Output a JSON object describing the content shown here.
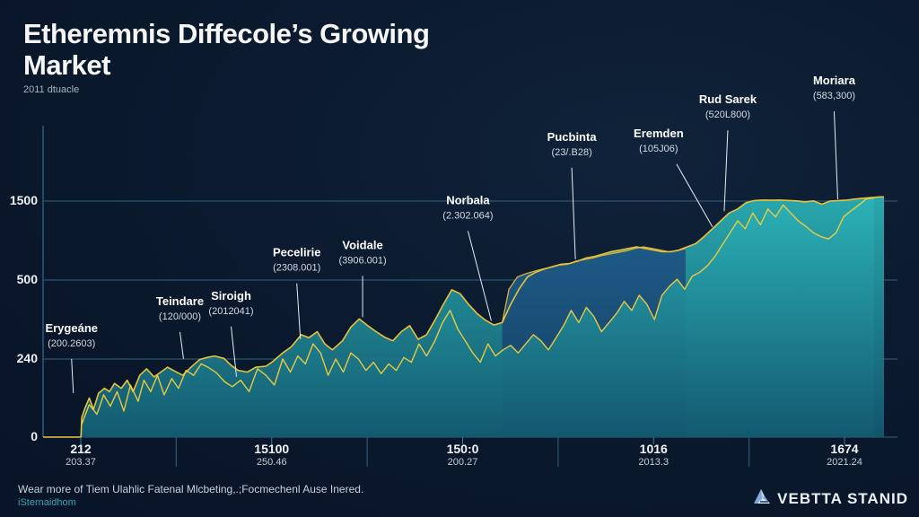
{
  "header": {
    "title": "Etheremnis Diffecole’s Growing Market",
    "subtitle": "2011 dtuacle"
  },
  "footer": {
    "text": "Wear more of Tiem Ulahlic Fatenal Mlcbeting,.;Focmechenl Ause Inered.",
    "link": "iSternaidhom"
  },
  "brand": {
    "name": "VEBTTA STANID",
    "icon": "mountain-logo-icon"
  },
  "colors": {
    "background": "#0b1a2e",
    "area_fill_top": "#2bb3b8",
    "area_fill_bottom": "#135a70",
    "upper_area_fill": "#1a4f78",
    "line": "#e8c23a",
    "gridline": "#2c5574",
    "text": "#ffffff"
  },
  "chart_data": {
    "type": "area",
    "title": "Etheremnis Diffecole’s Growing Market",
    "subtitle": "2011 dtuacle",
    "xlabel": "",
    "ylabel": "",
    "grid": true,
    "legend": "none",
    "y_ticks": [
      "0",
      "240",
      "500",
      "1500"
    ],
    "y_tick_values": [
      0,
      240,
      500,
      1500
    ],
    "x_ticks": [
      {
        "label": "212",
        "sub": "203.37"
      },
      {
        "label": "15100",
        "sub": "250.46"
      },
      {
        "label": "150:0",
        "sub": "200.27"
      },
      {
        "label": "1016",
        "sub": "2013.3"
      },
      {
        "label": "1674",
        "sub": "2021.24"
      }
    ],
    "x_range": [
      0,
      100
    ],
    "series": [
      {
        "name": "main",
        "kind": "area-line",
        "points": [
          [
            0,
            0
          ],
          [
            4.5,
            0
          ],
          [
            4.6,
            60
          ],
          [
            5,
            90
          ],
          [
            5.5,
            120
          ],
          [
            6,
            85
          ],
          [
            6.6,
            135
          ],
          [
            7.3,
            150
          ],
          [
            7.9,
            140
          ],
          [
            8.5,
            165
          ],
          [
            9.3,
            150
          ],
          [
            10,
            175
          ],
          [
            10.7,
            140
          ],
          [
            11.5,
            190
          ],
          [
            12.3,
            210
          ],
          [
            13.2,
            185
          ],
          [
            14,
            200
          ],
          [
            14.8,
            215
          ],
          [
            15.5,
            205
          ],
          [
            16.6,
            190
          ],
          [
            17.8,
            220
          ],
          [
            18.6,
            238
          ],
          [
            19.5,
            245
          ],
          [
            20.4,
            250
          ],
          [
            21.5,
            242
          ],
          [
            22.4,
            220
          ],
          [
            23.2,
            205
          ],
          [
            24.3,
            200
          ],
          [
            25.3,
            215
          ],
          [
            26.5,
            218
          ],
          [
            27.3,
            232
          ],
          [
            28.5,
            260
          ],
          [
            29.5,
            280
          ],
          [
            30.7,
            320
          ],
          [
            31.6,
            310
          ],
          [
            32.6,
            330
          ],
          [
            33.5,
            290
          ],
          [
            34.4,
            270
          ],
          [
            35.6,
            300
          ],
          [
            36.6,
            345
          ],
          [
            37.6,
            372
          ],
          [
            38.6,
            350
          ],
          [
            39.6,
            330
          ],
          [
            40.6,
            312
          ],
          [
            41.6,
            300
          ],
          [
            42.6,
            330
          ],
          [
            43.6,
            350
          ],
          [
            44.6,
            305
          ],
          [
            45.6,
            320
          ],
          [
            46.6,
            368
          ],
          [
            47.6,
            420
          ],
          [
            48.6,
            468
          ],
          [
            49.6,
            455
          ],
          [
            50.6,
            420
          ],
          [
            51.6,
            390
          ],
          [
            52.6,
            368
          ],
          [
            53.6,
            352
          ],
          [
            54.6,
            360
          ],
          [
            55.6,
            420
          ],
          [
            56.6,
            470
          ],
          [
            57.6,
            540
          ],
          [
            58.6,
            600
          ],
          [
            59.6,
            640
          ],
          [
            60.6,
            670
          ],
          [
            61.6,
            700
          ],
          [
            62.6,
            710
          ],
          [
            63.6,
            740
          ],
          [
            64.6,
            780
          ],
          [
            65.6,
            800
          ],
          [
            66.6,
            830
          ],
          [
            67.6,
            860
          ],
          [
            68.6,
            880
          ],
          [
            69.6,
            900
          ],
          [
            70.6,
            920
          ],
          [
            71.6,
            900
          ],
          [
            72.6,
            880
          ],
          [
            73.6,
            860
          ],
          [
            74.6,
            858
          ],
          [
            75.6,
            880
          ],
          [
            76.6,
            920
          ],
          [
            77.6,
            960
          ],
          [
            78.6,
            1050
          ],
          [
            79.6,
            1150
          ],
          [
            80.6,
            1250
          ],
          [
            81.6,
            1350
          ],
          [
            82.6,
            1400
          ],
          [
            83.6,
            1480
          ],
          [
            84.6,
            1550
          ],
          [
            85.6,
            1600
          ],
          [
            86.6,
            1580
          ],
          [
            87.6,
            1600
          ],
          [
            88.6,
            1560
          ],
          [
            89.6,
            1520
          ],
          [
            90.6,
            1490
          ],
          [
            91.6,
            1520
          ],
          [
            92.6,
            1460
          ],
          [
            93.6,
            1500
          ],
          [
            94.6,
            1550
          ],
          [
            95.6,
            1600
          ],
          [
            96.6,
            1700
          ],
          [
            97.6,
            1780
          ],
          [
            98.6,
            1850
          ],
          [
            99.4,
            1900
          ],
          [
            100,
            1910
          ]
        ]
      },
      {
        "name": "inner",
        "kind": "line",
        "points": [
          [
            4.6,
            40
          ],
          [
            5.5,
            100
          ],
          [
            6.4,
            70
          ],
          [
            7.2,
            130
          ],
          [
            8,
            95
          ],
          [
            8.8,
            140
          ],
          [
            9.6,
            80
          ],
          [
            10.4,
            160
          ],
          [
            11.3,
            110
          ],
          [
            12,
            175
          ],
          [
            12.8,
            140
          ],
          [
            13.6,
            190
          ],
          [
            14.4,
            130
          ],
          [
            15.3,
            180
          ],
          [
            16.1,
            150
          ],
          [
            17,
            205
          ],
          [
            17.9,
            190
          ],
          [
            18.8,
            225
          ],
          [
            19.6,
            215
          ],
          [
            20.6,
            198
          ],
          [
            21.6,
            170
          ],
          [
            22.5,
            155
          ],
          [
            23.5,
            175
          ],
          [
            24.5,
            140
          ],
          [
            25.5,
            210
          ],
          [
            26.5,
            190
          ],
          [
            27.5,
            160
          ],
          [
            28.5,
            240
          ],
          [
            29.4,
            200
          ],
          [
            30.3,
            250
          ],
          [
            31.2,
            225
          ],
          [
            32.1,
            290
          ],
          [
            33,
            260
          ],
          [
            33.9,
            190
          ],
          [
            34.8,
            240
          ],
          [
            35.7,
            200
          ],
          [
            36.6,
            260
          ],
          [
            37.5,
            240
          ],
          [
            38.4,
            205
          ],
          [
            39.3,
            230
          ],
          [
            40.2,
            195
          ],
          [
            41.1,
            225
          ],
          [
            42,
            205
          ],
          [
            42.9,
            245
          ],
          [
            43.8,
            230
          ],
          [
            44.7,
            290
          ],
          [
            45.6,
            250
          ],
          [
            46.6,
            300
          ],
          [
            47.5,
            360
          ],
          [
            48.4,
            400
          ],
          [
            49.3,
            340
          ],
          [
            50.2,
            300
          ],
          [
            51.1,
            260
          ],
          [
            52,
            230
          ],
          [
            52.9,
            290
          ],
          [
            53.8,
            250
          ],
          [
            54.7,
            270
          ],
          [
            55.6,
            285
          ],
          [
            56.5,
            260
          ],
          [
            57.4,
            290
          ],
          [
            58.3,
            320
          ],
          [
            59.2,
            300
          ],
          [
            60.1,
            270
          ],
          [
            61,
            310
          ],
          [
            61.9,
            350
          ],
          [
            62.8,
            400
          ],
          [
            63.7,
            360
          ],
          [
            64.6,
            410
          ],
          [
            65.5,
            380
          ],
          [
            66.4,
            330
          ],
          [
            67.3,
            360
          ],
          [
            68.2,
            390
          ],
          [
            69.1,
            430
          ],
          [
            70,
            400
          ],
          [
            70.9,
            450
          ],
          [
            71.8,
            420
          ],
          [
            72.7,
            370
          ],
          [
            73.6,
            450
          ],
          [
            74.5,
            480
          ],
          [
            75.4,
            510
          ],
          [
            76.3,
            470
          ],
          [
            77.2,
            550
          ],
          [
            78.1,
            600
          ],
          [
            79,
            680
          ],
          [
            79.9,
            800
          ],
          [
            80.8,
            950
          ],
          [
            81.7,
            1100
          ],
          [
            82.6,
            1250
          ],
          [
            83.5,
            1150
          ],
          [
            84.4,
            1350
          ],
          [
            85.3,
            1200
          ],
          [
            86.2,
            1400
          ],
          [
            87.1,
            1300
          ],
          [
            88,
            1450
          ],
          [
            88.9,
            1350
          ],
          [
            89.8,
            1250
          ],
          [
            90.7,
            1180
          ],
          [
            91.6,
            1100
          ],
          [
            92.5,
            1050
          ],
          [
            93.4,
            1020
          ],
          [
            94.3,
            1100
          ],
          [
            95.2,
            1300
          ],
          [
            96.1,
            1380
          ],
          [
            97,
            1450
          ],
          [
            97.9,
            1700
          ],
          [
            98.8,
            1800
          ]
        ]
      },
      {
        "name": "upper-envelope",
        "kind": "area",
        "points": [
          [
            54.6,
            360
          ],
          [
            55.4,
            470
          ],
          [
            56.4,
            540
          ],
          [
            57.4,
            580
          ],
          [
            58.4,
            610
          ],
          [
            59.4,
            640
          ],
          [
            60.4,
            660
          ],
          [
            61.4,
            690
          ],
          [
            62.4,
            700
          ],
          [
            63.4,
            740
          ],
          [
            64.4,
            760
          ],
          [
            65.4,
            780
          ],
          [
            66.4,
            810
          ],
          [
            67.4,
            830
          ],
          [
            68.4,
            850
          ],
          [
            69.4,
            870
          ],
          [
            70.4,
            900
          ],
          [
            71.4,
            920
          ],
          [
            72.4,
            900
          ],
          [
            73.4,
            880
          ],
          [
            74.4,
            858
          ],
          [
            75.4,
            870
          ],
          [
            76.4,
            900
          ]
        ]
      }
    ],
    "annotations": [
      {
        "name": "Erygeáne",
        "value": "(200.2603)",
        "x": 3.6,
        "y": 130
      },
      {
        "name": "Teindare",
        "value": "(120/000)",
        "x": 16.7,
        "y": 235
      },
      {
        "name": "Siroigh",
        "value": "(2012041)",
        "x": 23.0,
        "y": 180
      },
      {
        "name": "Pecelirie",
        "value": "(2308.001)",
        "x": 30.6,
        "y": 300
      },
      {
        "name": "Voidale",
        "value": "(3906.001)",
        "x": 38.0,
        "y": 372
      },
      {
        "name": "Norbala",
        "value": "(2.302.064)",
        "x": 53.3,
        "y": 360
      },
      {
        "name": "Pucbinta",
        "value": "(23/.B28)",
        "x": 63.3,
        "y": 740
      },
      {
        "name": "Eremden",
        "value": "(105J06)",
        "x": 79.6,
        "y": 1150
      },
      {
        "name": "Rud Sarek",
        "value": "(520L800)",
        "x": 81.0,
        "y": 1350
      },
      {
        "name": "Moriara",
        "value": "(583,300)",
        "x": 94.5,
        "y": 1500
      }
    ]
  }
}
